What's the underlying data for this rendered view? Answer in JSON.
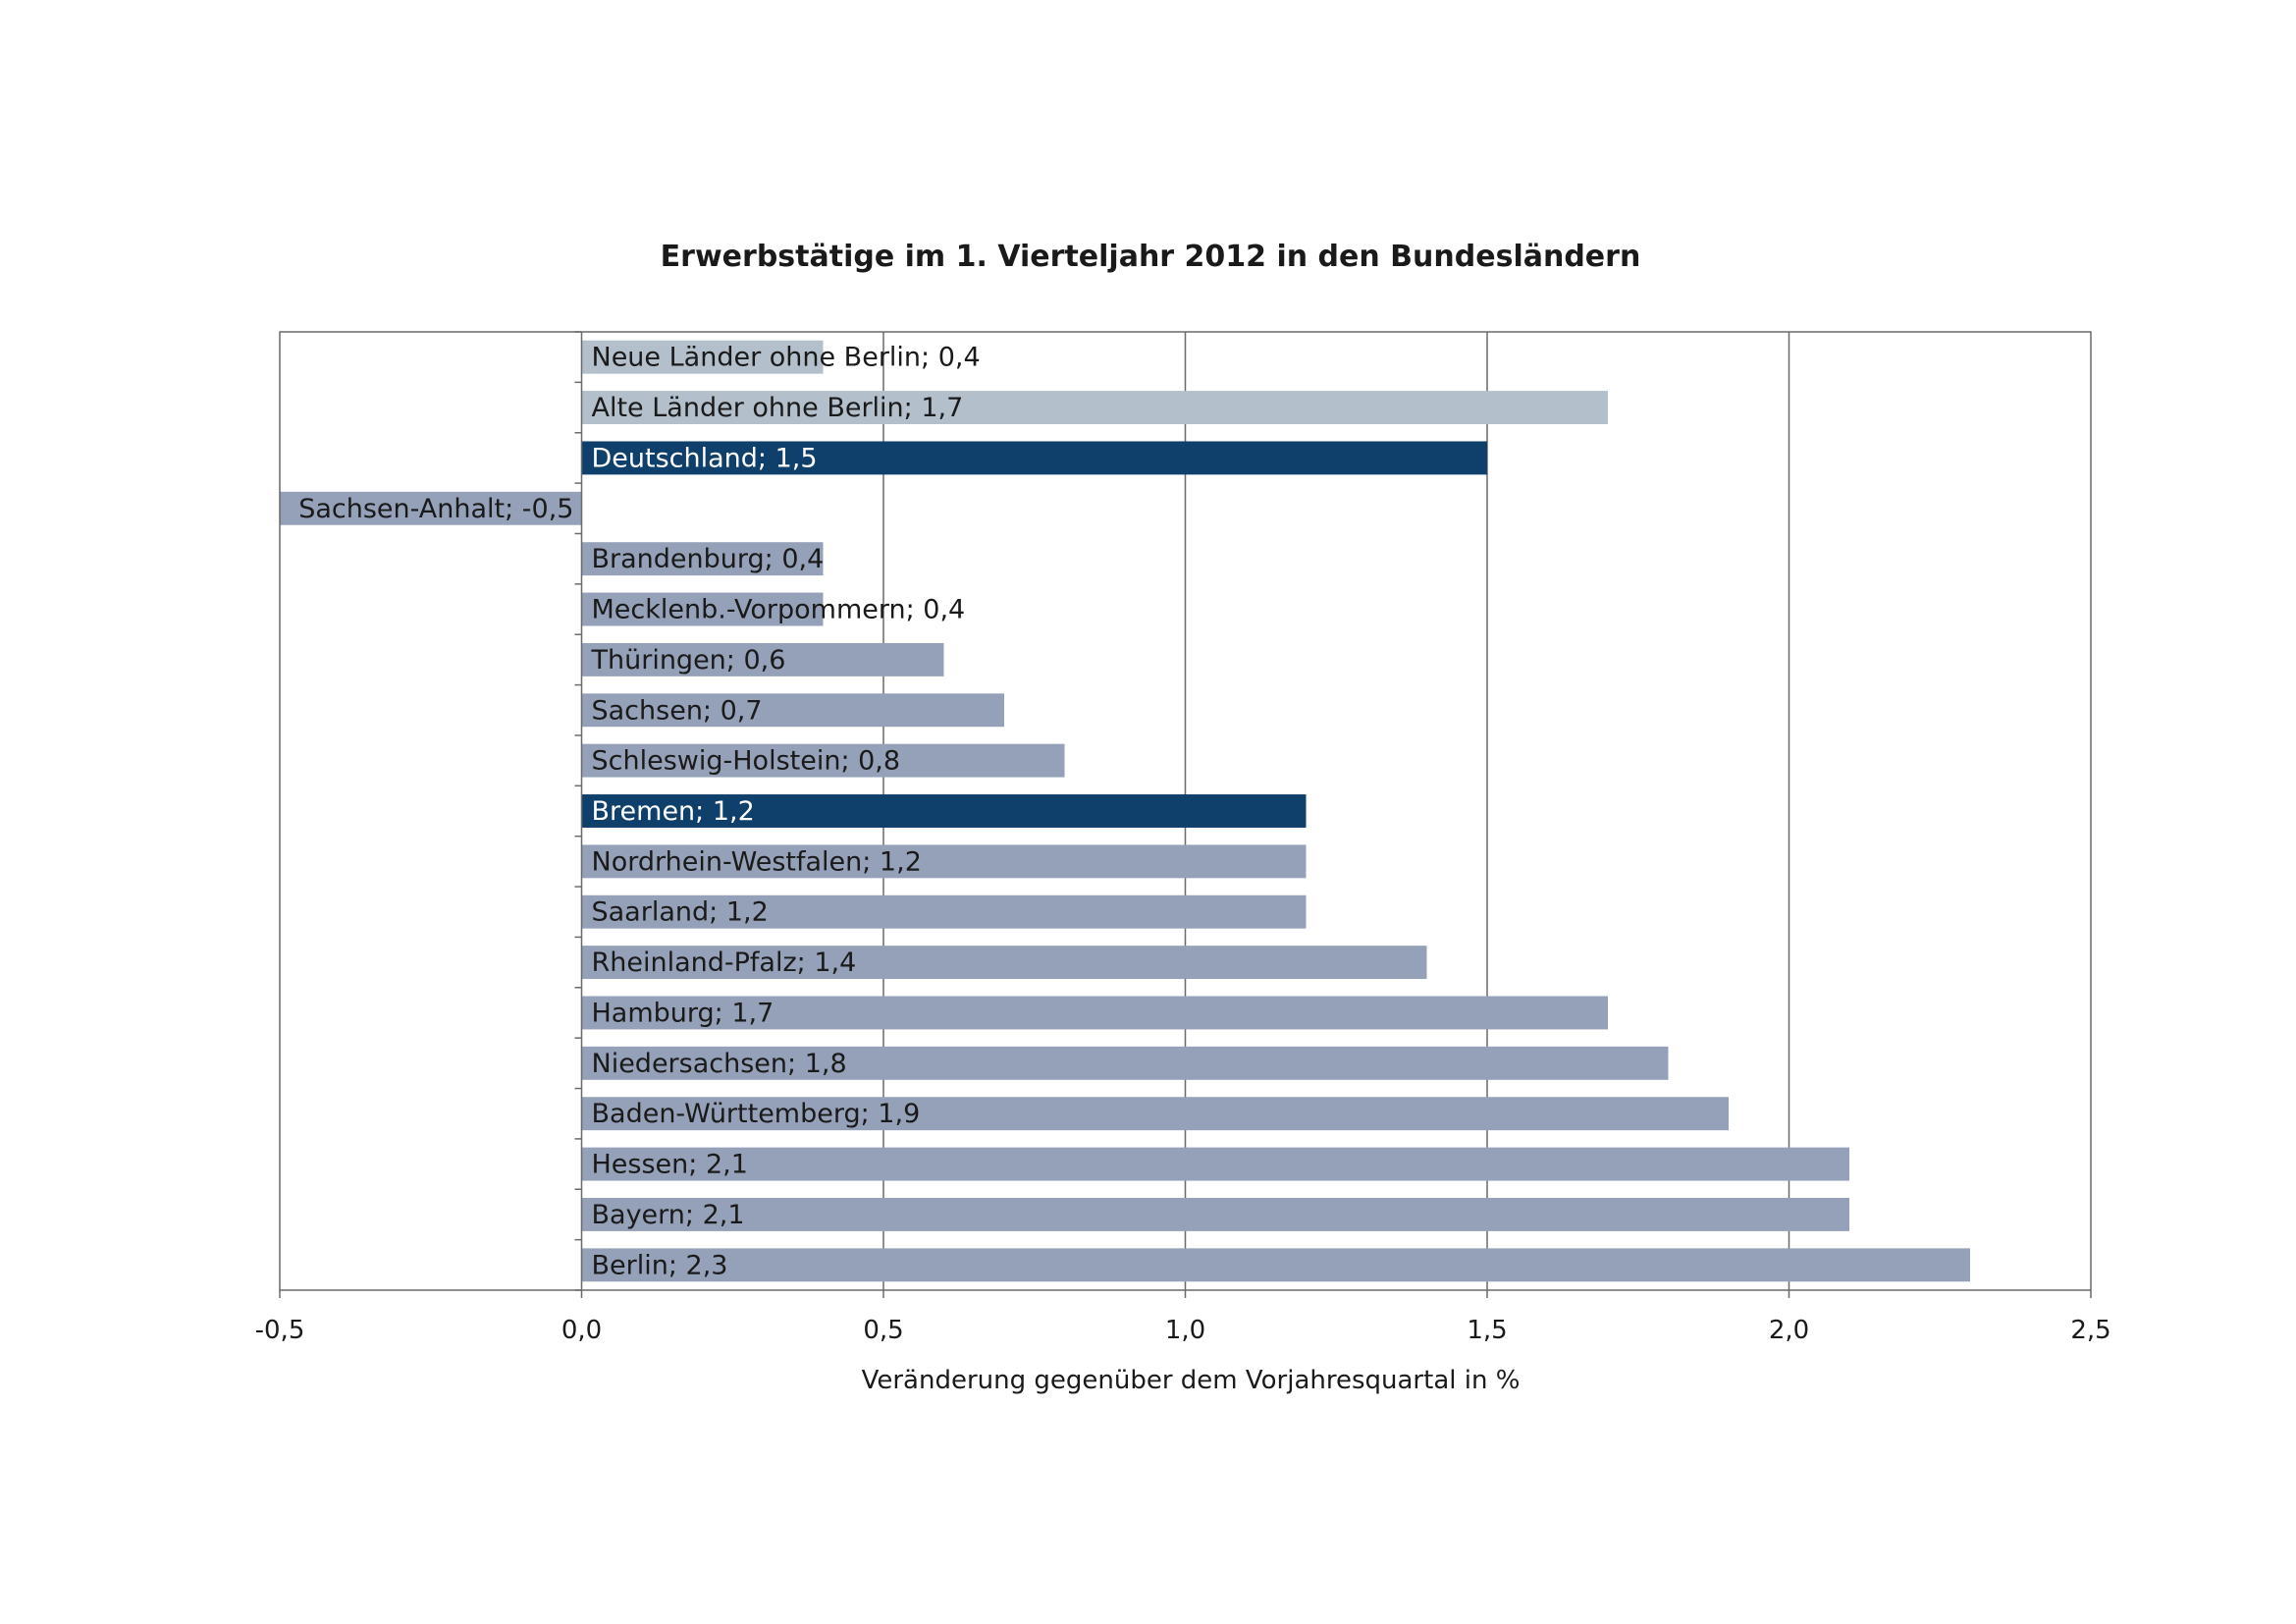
{
  "chart_data": {
    "type": "bar",
    "orientation": "horizontal",
    "title": "Erwerbstätige im 1. Vierteljahr 2012 in den Bundesländern",
    "xlabel": "Veränderung gegenüber dem Vorjahresquartal in %",
    "ylabel": "",
    "xlim": [
      -0.5,
      2.5
    ],
    "xticks": [
      -0.5,
      0.0,
      0.5,
      1.0,
      1.5,
      2.0,
      2.5
    ],
    "xtick_labels": [
      "-0,5",
      "0,0",
      "0,5",
      "1,0",
      "1,5",
      "2,0",
      "2,5"
    ],
    "grid": "vertical",
    "legend": "none",
    "colors": {
      "aggregate": "#b3bfcb",
      "highlight": "#0f3f6b",
      "state": "#95a1b8",
      "grid": "#6a6a6a",
      "text_dark": "#1a1a1a",
      "text_light": "#ffffff"
    },
    "categories": [
      "Neue Länder ohne Berlin",
      "Alte Länder ohne Berlin",
      "Deutschland",
      "Sachsen-Anhalt",
      "Brandenburg",
      "Mecklenb.-Vorpommern",
      "Thüringen",
      "Sachsen",
      "Schleswig-Holstein",
      "Bremen",
      "Nordrhein-Westfalen",
      "Saarland",
      "Rheinland-Pfalz",
      "Hamburg",
      "Niedersachsen",
      "Baden-Württemberg",
      "Hessen",
      "Bayern",
      "Berlin"
    ],
    "values": [
      0.4,
      1.7,
      1.5,
      -0.5,
      0.4,
      0.4,
      0.6,
      0.7,
      0.8,
      1.2,
      1.2,
      1.2,
      1.4,
      1.7,
      1.8,
      1.9,
      2.1,
      2.1,
      2.3
    ],
    "data_labels": [
      "Neue Länder ohne Berlin; 0,4",
      "Alte Länder ohne Berlin; 1,7",
      "Deutschland; 1,5",
      "Sachsen-Anhalt; -0,5",
      "Brandenburg; 0,4",
      "Mecklenb.-Vorpommern; 0,4",
      "Thüringen; 0,6",
      "Sachsen; 0,7",
      "Schleswig-Holstein; 0,8",
      "Bremen; 1,2",
      "Nordrhein-Westfalen; 1,2",
      "Saarland; 1,2",
      "Rheinland-Pfalz; 1,4",
      "Hamburg; 1,7",
      "Niedersachsen; 1,8",
      "Baden-Württemberg; 1,9",
      "Hessen; 2,1",
      "Bayern; 2,1",
      "Berlin; 2,3"
    ],
    "bar_groups": [
      "aggregate",
      "aggregate",
      "highlight",
      "state",
      "state",
      "state",
      "state",
      "state",
      "state",
      "highlight",
      "state",
      "state",
      "state",
      "state",
      "state",
      "state",
      "state",
      "state",
      "state"
    ]
  }
}
